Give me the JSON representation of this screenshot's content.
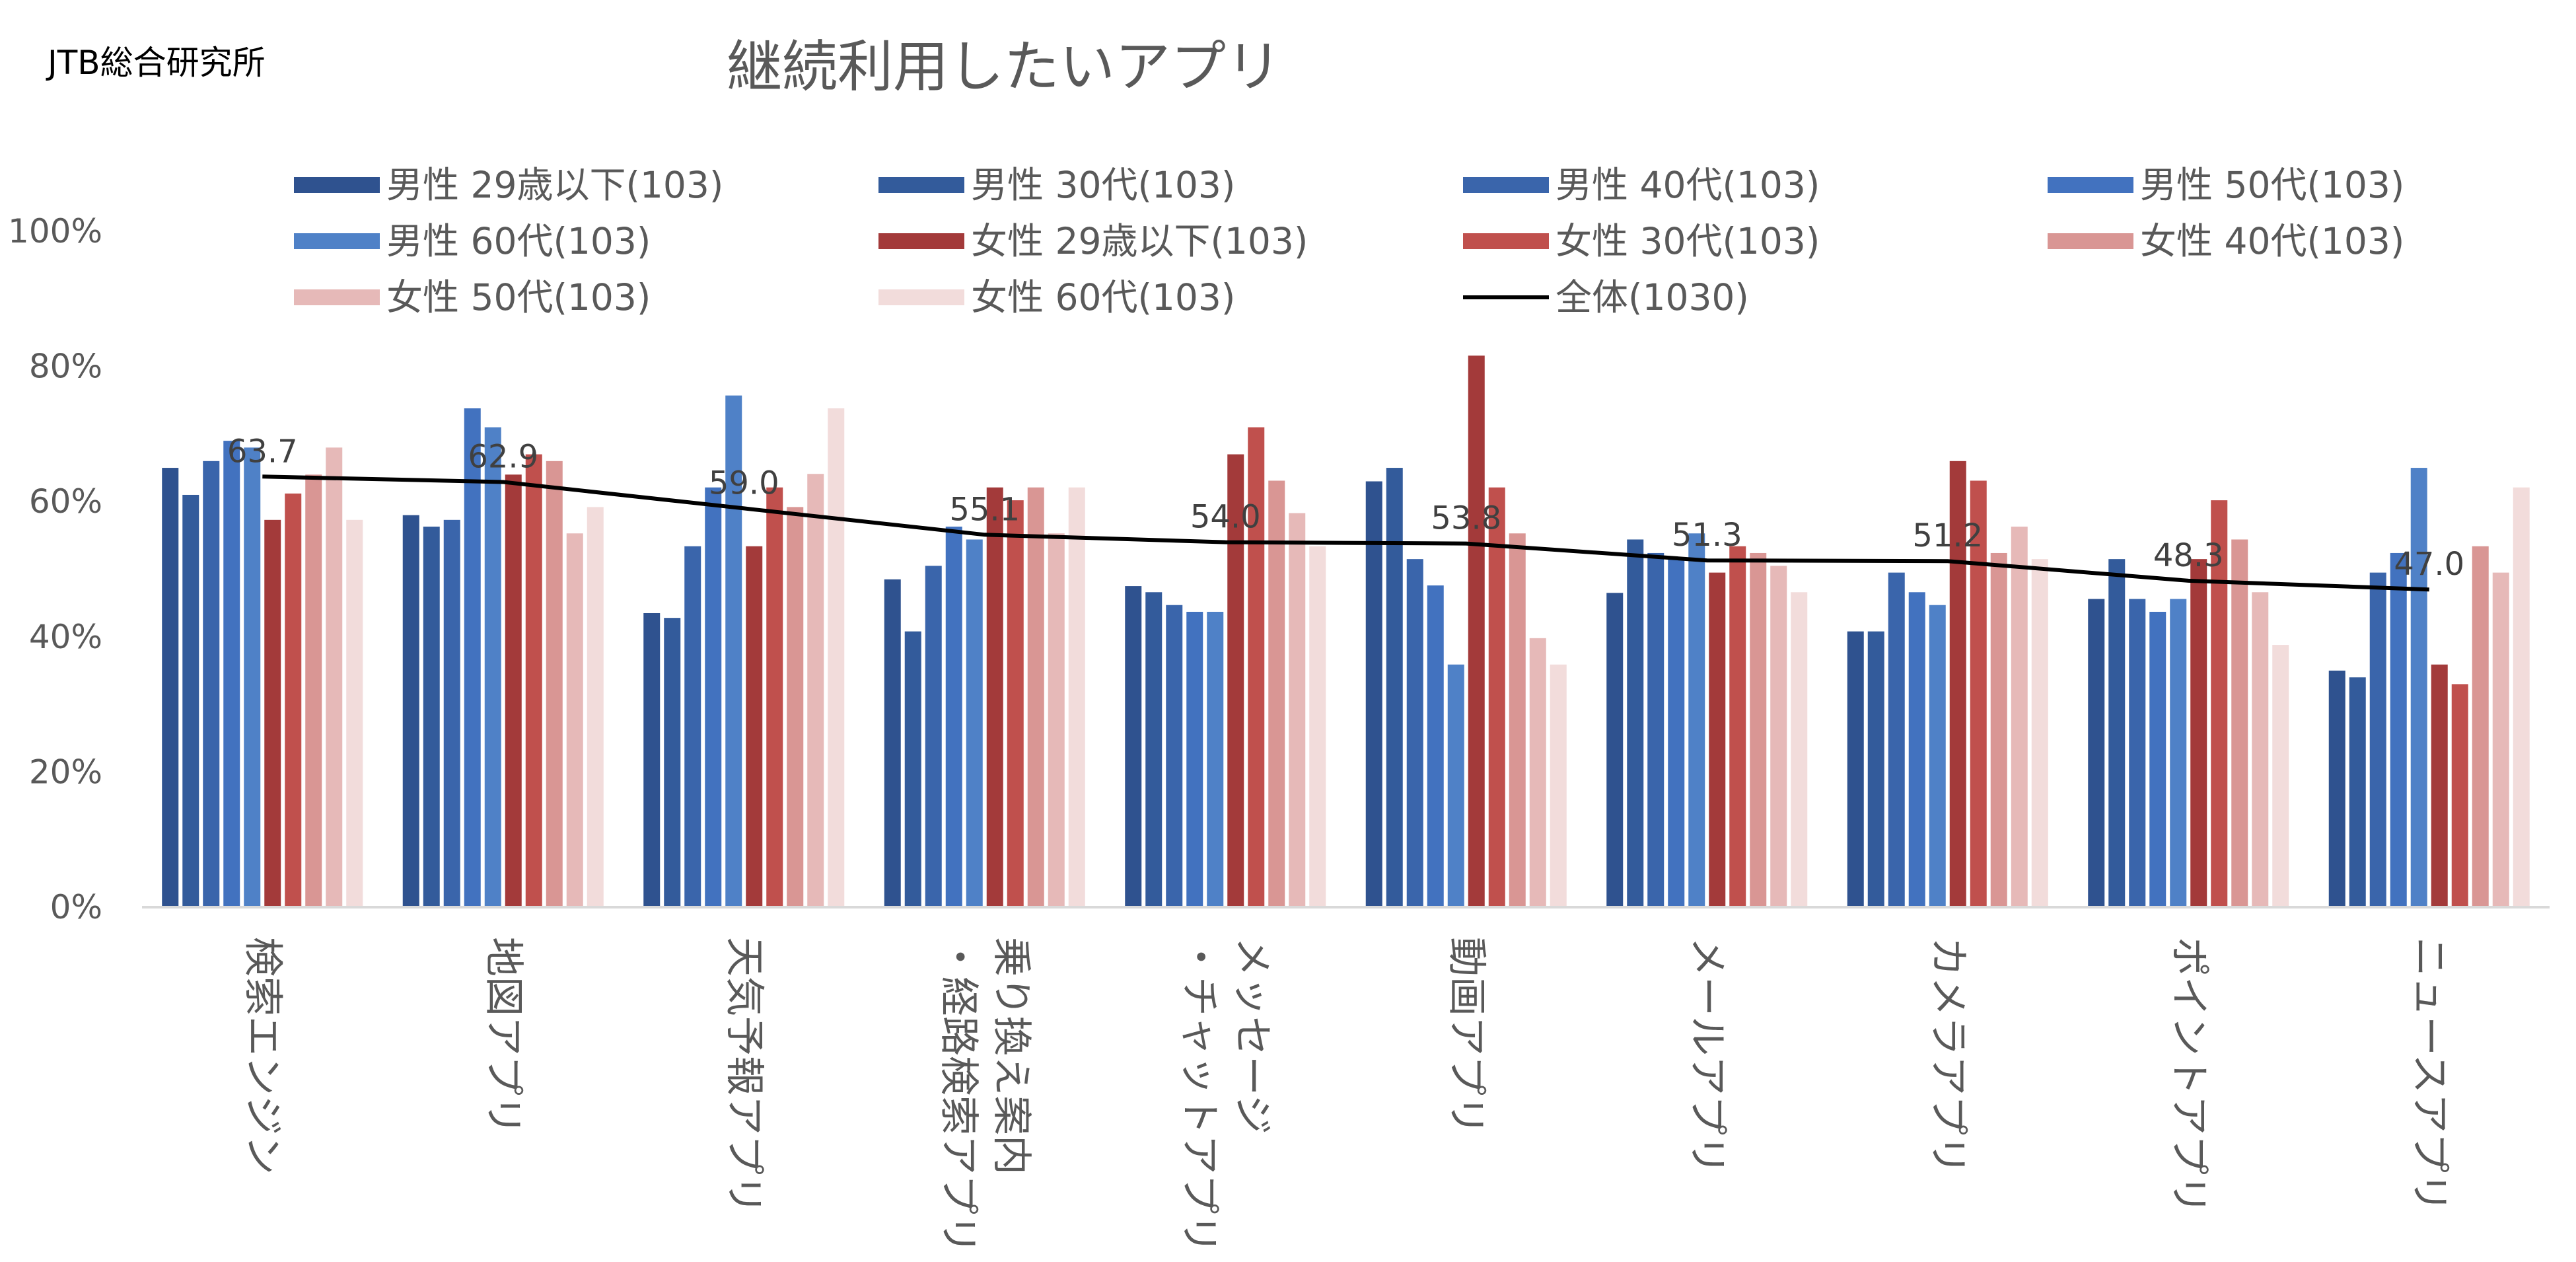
{
  "source_label": "JTB総合研究所",
  "chart_data": {
    "type": "bar",
    "title": "継続利用したいアプリ",
    "ylim": [
      0,
      100
    ],
    "yticks": [
      "0%",
      "20%",
      "40%",
      "60%",
      "80%",
      "100%"
    ],
    "ytick_values": [
      0,
      20,
      40,
      60,
      80,
      100
    ],
    "legend_position": "top",
    "categories": [
      [
        "検索エンジン"
      ],
      [
        "地図アプリ"
      ],
      [
        "天気予報アプリ"
      ],
      [
        "乗り換え案内",
        "・経路検索アプリ"
      ],
      [
        "メッセージ",
        "・チャットアプリ"
      ],
      [
        "動画アプリ"
      ],
      [
        "メールアプリ"
      ],
      [
        "カメラアプリ"
      ],
      [
        "ポイントアプリ"
      ],
      [
        "ニュースアプリ"
      ]
    ],
    "series": [
      {
        "name": "男性 29歳以下(103)",
        "color": "#2f528f",
        "values": [
          65,
          58,
          43.5,
          48.5,
          47.5,
          63,
          46.5,
          40.8,
          45.6,
          35
        ]
      },
      {
        "name": "男性 30代(103)",
        "color": "#335b9b",
        "values": [
          61,
          56.3,
          42.8,
          40.8,
          46.6,
          65,
          54.4,
          40.8,
          51.5,
          34
        ]
      },
      {
        "name": "男性 40代(103)",
        "color": "#3a65ab",
        "values": [
          66,
          57.3,
          53.4,
          50.5,
          44.7,
          51.5,
          52.4,
          49.5,
          45.6,
          49.5
        ]
      },
      {
        "name": "男性 50代(103)",
        "color": "#4272bf",
        "values": [
          69,
          73.8,
          62.1,
          56.3,
          43.7,
          47.6,
          51.5,
          46.6,
          43.7,
          52.4
        ]
      },
      {
        "name": "男性 60代(103)",
        "color": "#4f81c7",
        "values": [
          68,
          71,
          75.7,
          54.4,
          43.7,
          35.9,
          55.3,
          44.7,
          45.6,
          65
        ]
      },
      {
        "name": "女性 29歳以下(103)",
        "color": "#a33a3a",
        "values": [
          57.3,
          64,
          53.4,
          62.1,
          67,
          81.6,
          49.5,
          66,
          51.5,
          35.9
        ]
      },
      {
        "name": "女性 30代(103)",
        "color": "#c0504d",
        "values": [
          61.2,
          67,
          62.1,
          60.2,
          71,
          62.1,
          53.4,
          63.1,
          60.2,
          33
        ]
      },
      {
        "name": "女性 40代(103)",
        "color": "#d99694",
        "values": [
          64,
          66,
          59.2,
          62.1,
          63.1,
          55.3,
          52.4,
          52.4,
          54.4,
          53.4
        ]
      },
      {
        "name": "女性 50代(103)",
        "color": "#e6b9b8",
        "values": [
          68,
          55.3,
          64.1,
          55.3,
          58.3,
          39.8,
          50.5,
          56.3,
          46.6,
          49.5
        ]
      },
      {
        "name": "女性 60代(103)",
        "color": "#f2dcdb",
        "values": [
          57.3,
          59.2,
          73.8,
          62.1,
          53.4,
          35.9,
          46.6,
          51.5,
          38.8,
          62.1
        ]
      }
    ],
    "line_series": {
      "name": "全体(1030)",
      "color": "#000000",
      "values": [
        63.7,
        62.9,
        59.0,
        55.1,
        54.0,
        53.8,
        51.3,
        51.2,
        48.3,
        47.0
      ],
      "labels": [
        "63.7",
        "62.9",
        "59.0",
        "55.1",
        "54.0",
        "53.8",
        "51.3",
        "51.2",
        "48.3",
        "47.0"
      ]
    }
  }
}
